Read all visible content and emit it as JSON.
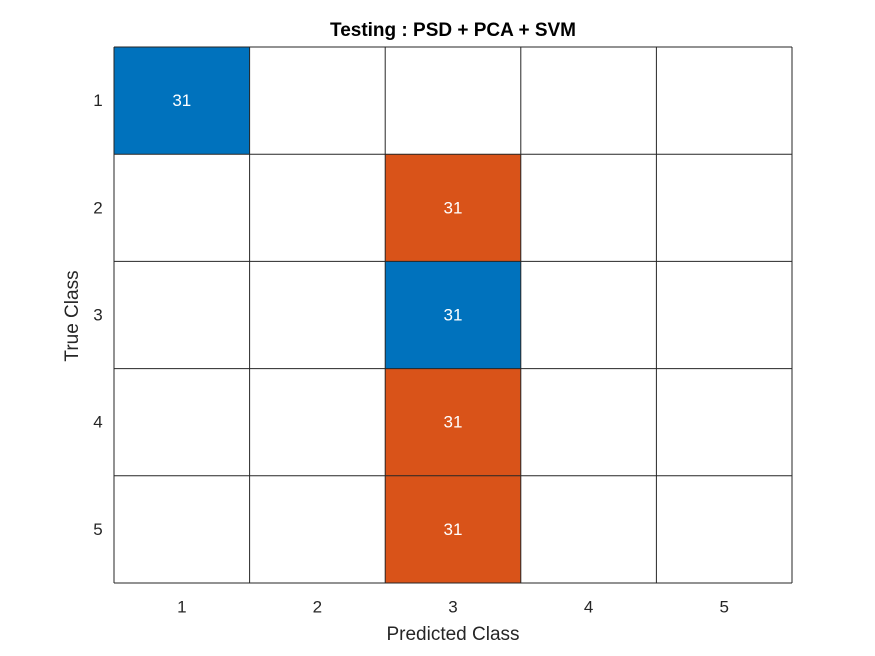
{
  "chart_data": {
    "type": "heatmap",
    "title": "Testing : PSD + PCA + SVM",
    "xlabel": "Predicted Class",
    "ylabel": "True Class",
    "x_categories": [
      "1",
      "2",
      "3",
      "4",
      "5"
    ],
    "y_categories": [
      "1",
      "2",
      "3",
      "4",
      "5"
    ],
    "values": [
      [
        31,
        0,
        0,
        0,
        0
      ],
      [
        0,
        0,
        31,
        0,
        0
      ],
      [
        0,
        0,
        31,
        0,
        0
      ],
      [
        0,
        0,
        31,
        0,
        0
      ],
      [
        0,
        0,
        31,
        0,
        0
      ]
    ],
    "grid": true,
    "colors": {
      "correct": "#0072BD",
      "incorrect": "#D95319",
      "empty": "#FFFFFF",
      "gridline": "#262626",
      "cell_text": "#FFFFFF",
      "tick_text": "#262626"
    }
  }
}
